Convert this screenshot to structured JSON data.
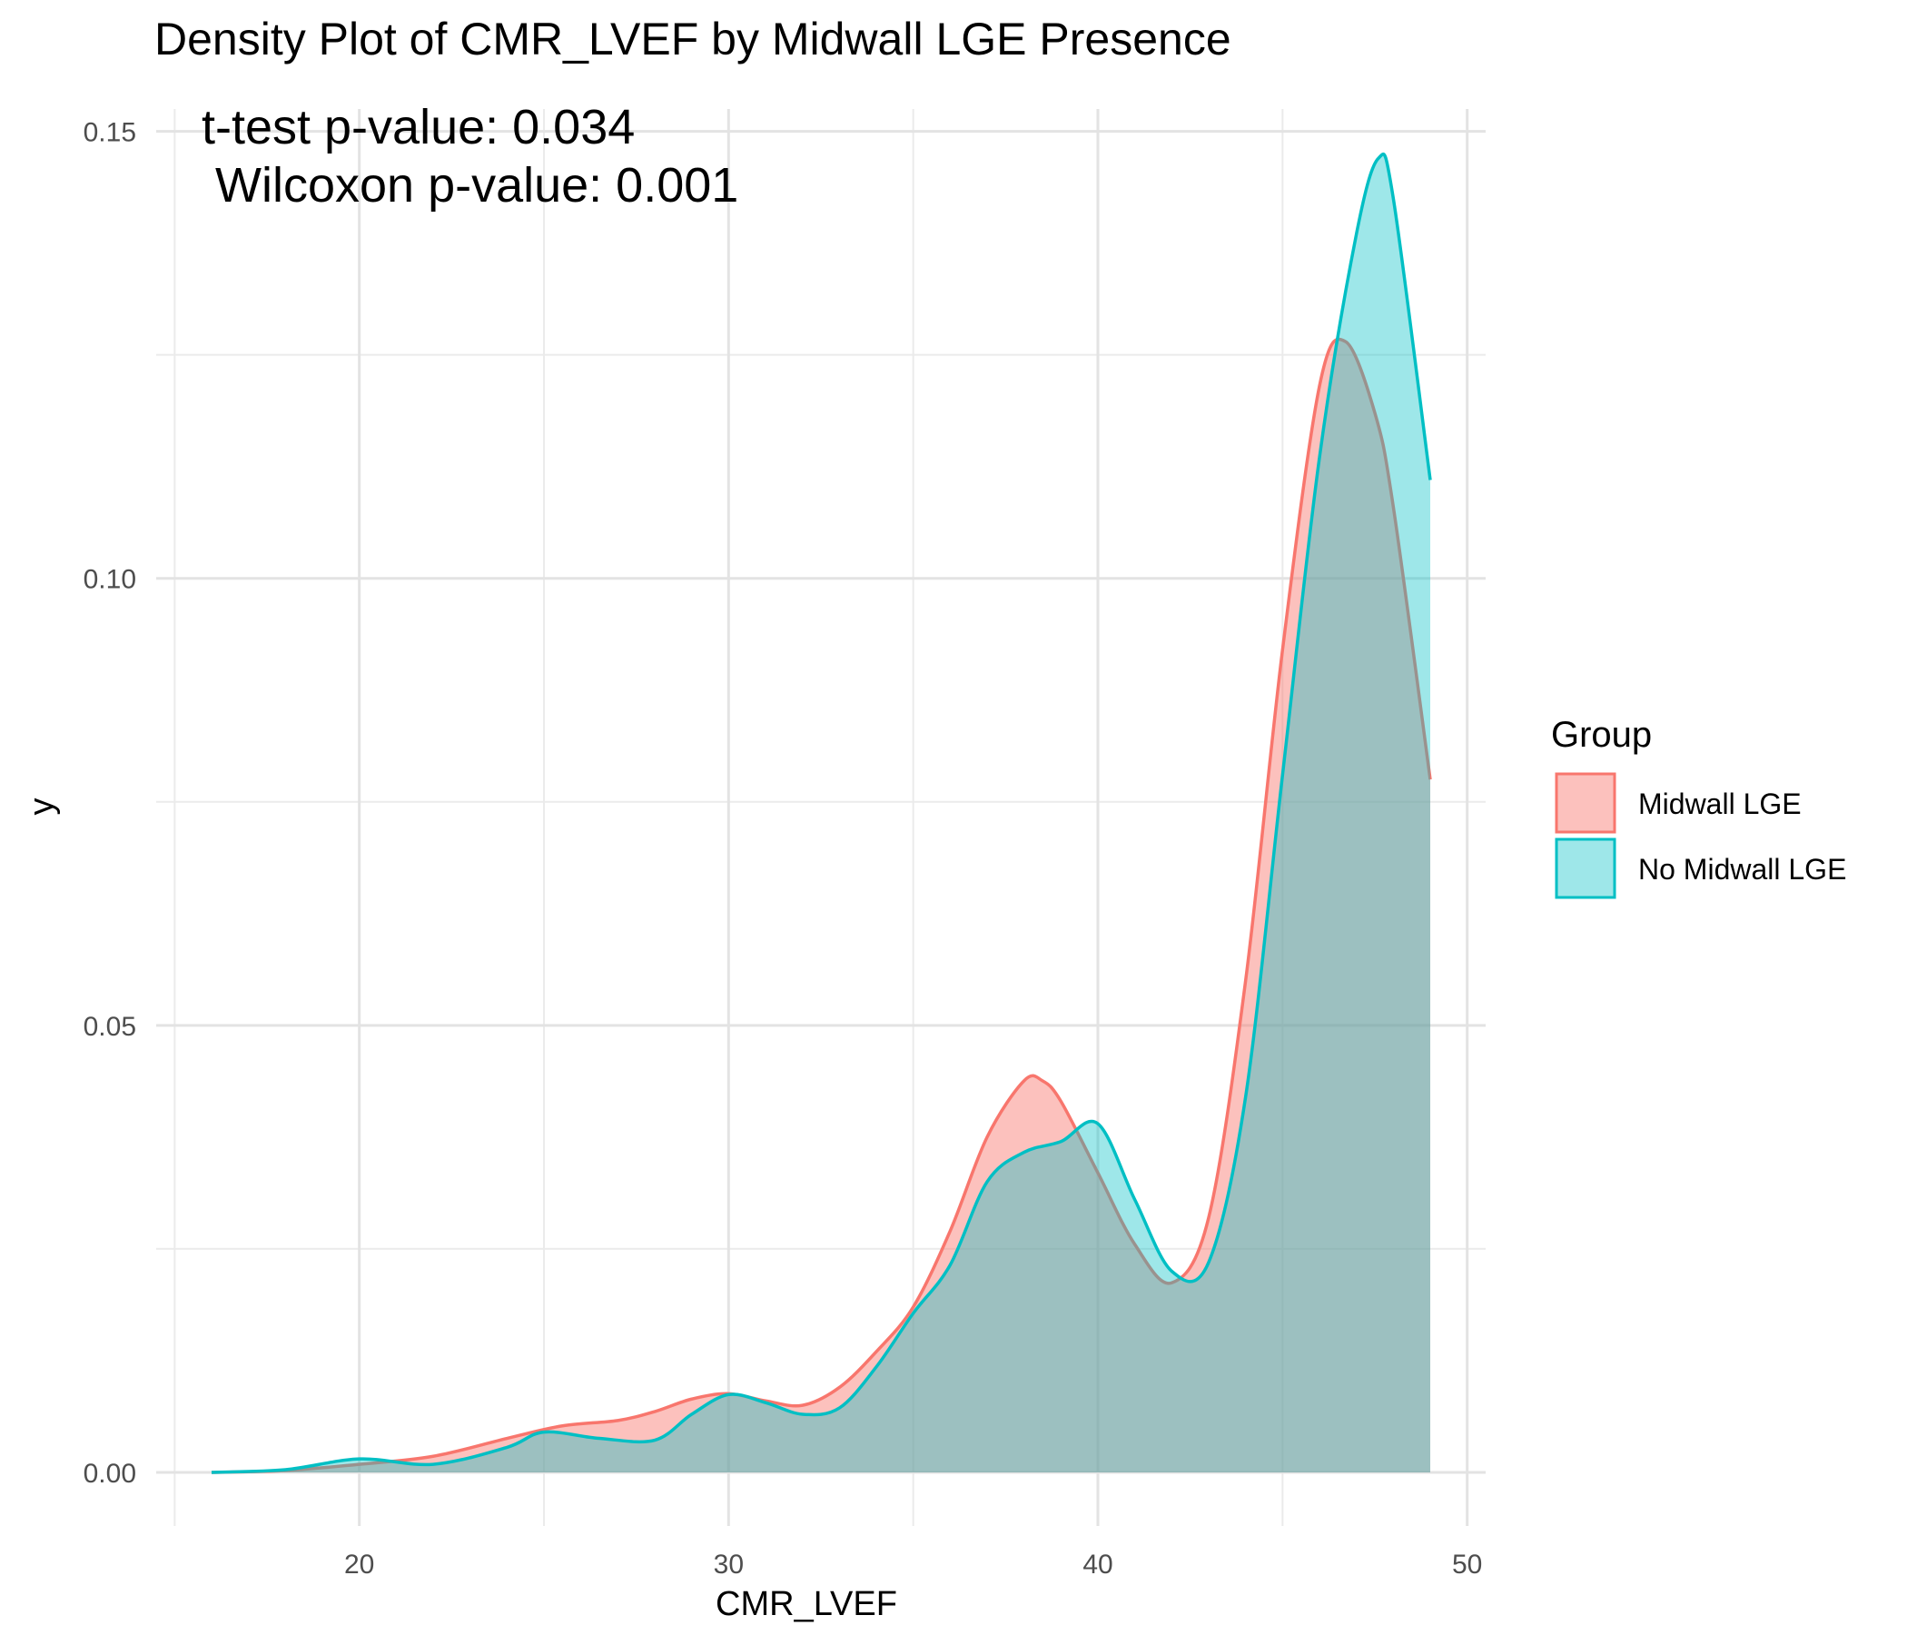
{
  "chart_data": {
    "type": "area",
    "title": "Density Plot of CMR_LVEF by Midwall LGE Presence",
    "xlabel": "CMR_LVEF",
    "ylabel": "y",
    "xlim": [
      14.5,
      50.5
    ],
    "ylim": [
      -0.006,
      0.1525
    ],
    "x_ticks": [
      20,
      30,
      40,
      50
    ],
    "x_tick_labels": [
      "20",
      "30",
      "40",
      "50"
    ],
    "y_ticks": [
      0,
      0.05,
      0.1,
      0.15
    ],
    "y_tick_labels": [
      "0.00",
      "0.05",
      "0.10",
      "0.15"
    ],
    "grid": true,
    "annotations": [
      "t-test p-value: 0.034",
      " Wilcoxon p-value: 0.001"
    ],
    "legend": {
      "title": "Group",
      "position": "right",
      "entries": [
        "Midwall LGE",
        "No Midwall LGE"
      ]
    },
    "series": [
      {
        "name": "Midwall LGE",
        "color": "#F8766D",
        "x": [
          16,
          18,
          20,
          22,
          24,
          25.5,
          27,
          28,
          29,
          30,
          31,
          32,
          33,
          34,
          35,
          36,
          37,
          38,
          38.5,
          39,
          40,
          41,
          42,
          43,
          44,
          45,
          46,
          46.7,
          47.5,
          48,
          49
        ],
        "y": [
          0,
          0.0002,
          0.0009,
          0.0018,
          0.0038,
          0.0052,
          0.0058,
          0.0068,
          0.0082,
          0.0088,
          0.008,
          0.0075,
          0.0095,
          0.0135,
          0.0185,
          0.027,
          0.0375,
          0.0438,
          0.0438,
          0.0415,
          0.0335,
          0.0255,
          0.0212,
          0.0285,
          0.055,
          0.092,
          0.1215,
          0.1265,
          0.1185,
          0.108,
          0.0775
        ]
      },
      {
        "name": "No Midwall LGE",
        "color": "#00BFC4",
        "x": [
          16,
          18,
          20,
          22,
          24,
          25,
          26.5,
          28,
          29,
          30,
          31,
          32,
          33,
          34,
          35,
          36,
          37,
          38,
          39,
          40,
          41,
          42,
          43,
          44,
          45,
          46,
          47,
          47.6,
          48,
          49
        ],
        "y": [
          0,
          0.0003,
          0.0015,
          0.0009,
          0.0028,
          0.0045,
          0.0038,
          0.0036,
          0.0065,
          0.0087,
          0.0078,
          0.0065,
          0.0072,
          0.0118,
          0.0178,
          0.0232,
          0.0325,
          0.0358,
          0.037,
          0.039,
          0.0305,
          0.0225,
          0.0235,
          0.042,
          0.078,
          0.1135,
          0.1385,
          0.147,
          0.1425,
          0.111
        ]
      }
    ]
  }
}
